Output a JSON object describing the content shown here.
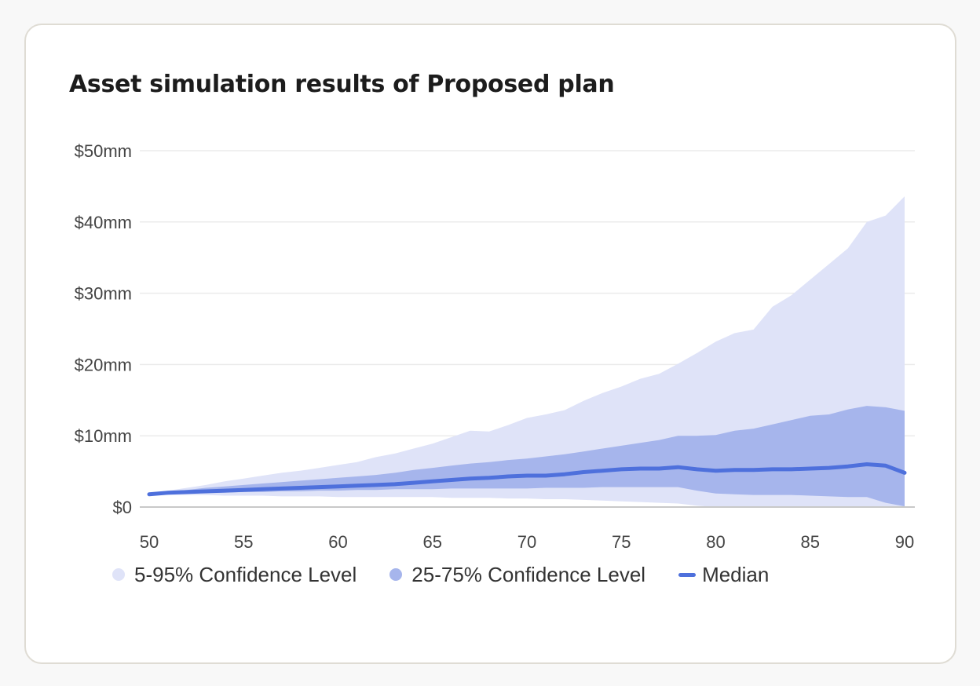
{
  "title": "Asset simulation results of Proposed plan",
  "colors": {
    "band_outer": "#dfe3f8",
    "band_inner": "#a6b5ec",
    "median": "#4e70dc",
    "grid": "#ebebeb",
    "axis": "#c9c9c9"
  },
  "chart_data": {
    "type": "area",
    "title": "Asset simulation results of Proposed plan",
    "xlabel": "",
    "ylabel": "",
    "xlim": [
      50,
      90
    ],
    "ylim": [
      0,
      50
    ],
    "x_ticks": [
      50,
      55,
      60,
      65,
      70,
      75,
      80,
      85,
      90
    ],
    "x_tick_labels": [
      "50",
      "55",
      "60",
      "65",
      "70",
      "75",
      "80",
      "85",
      "90"
    ],
    "y_ticks": [
      0,
      10,
      20,
      30,
      40,
      50
    ],
    "y_tick_labels": [
      "$0",
      "$10mm",
      "$20mm",
      "$30mm",
      "$40mm",
      "$50mm"
    ],
    "grid": true,
    "legend_position": "bottom",
    "unit": "$mm",
    "x": [
      50,
      51,
      52,
      53,
      54,
      55,
      56,
      57,
      58,
      59,
      60,
      61,
      62,
      63,
      64,
      65,
      66,
      67,
      68,
      69,
      70,
      71,
      72,
      73,
      74,
      75,
      76,
      77,
      78,
      79,
      80,
      81,
      82,
      83,
      84,
      85,
      86,
      87,
      88,
      89,
      90
    ],
    "series": [
      {
        "name": "5-95% Confidence Level",
        "kind": "band",
        "low": [
          1.8,
          1.7,
          1.7,
          1.7,
          1.6,
          1.6,
          1.6,
          1.5,
          1.5,
          1.5,
          1.4,
          1.4,
          1.4,
          1.4,
          1.4,
          1.4,
          1.3,
          1.3,
          1.3,
          1.2,
          1.2,
          1.1,
          1.1,
          1.0,
          0.9,
          0.8,
          0.7,
          0.6,
          0.5,
          0.2,
          0.0,
          0.0,
          0.0,
          0.0,
          0.0,
          0.0,
          0.0,
          0.0,
          0.0,
          0.0,
          0.0
        ],
        "high": [
          1.8,
          2.3,
          2.7,
          3.1,
          3.6,
          4.0,
          4.4,
          4.8,
          5.1,
          5.5,
          5.9,
          6.3,
          7.0,
          7.5,
          8.2,
          8.9,
          9.8,
          10.7,
          10.6,
          11.5,
          12.5,
          13.0,
          13.6,
          14.9,
          16.0,
          16.9,
          18.0,
          18.7,
          20.1,
          21.6,
          23.2,
          24.4,
          24.9,
          28.1,
          29.7,
          31.9,
          34.1,
          36.3,
          40.0,
          40.9,
          43.6
        ]
      },
      {
        "name": "25-75% Confidence Level",
        "kind": "band",
        "low": [
          1.8,
          1.8,
          1.9,
          2.0,
          2.0,
          2.1,
          2.1,
          2.2,
          2.2,
          2.3,
          2.3,
          2.4,
          2.4,
          2.5,
          2.5,
          2.5,
          2.6,
          2.6,
          2.6,
          2.6,
          2.6,
          2.7,
          2.7,
          2.7,
          2.8,
          2.8,
          2.8,
          2.8,
          2.8,
          2.3,
          1.9,
          1.8,
          1.7,
          1.7,
          1.7,
          1.6,
          1.5,
          1.4,
          1.4,
          0.6,
          0.1
        ],
        "high": [
          1.8,
          2.2,
          2.4,
          2.7,
          2.9,
          3.1,
          3.3,
          3.5,
          3.7,
          3.9,
          4.1,
          4.3,
          4.5,
          4.8,
          5.2,
          5.5,
          5.8,
          6.1,
          6.3,
          6.6,
          6.8,
          7.1,
          7.4,
          7.8,
          8.2,
          8.6,
          9.0,
          9.4,
          10.0,
          10.0,
          10.1,
          10.7,
          11.0,
          11.6,
          12.2,
          12.8,
          13.0,
          13.7,
          14.2,
          14.0,
          13.5
        ]
      },
      {
        "name": "Median",
        "kind": "line",
        "values": [
          1.8,
          2.0,
          2.1,
          2.2,
          2.3,
          2.4,
          2.5,
          2.6,
          2.7,
          2.8,
          2.9,
          3.0,
          3.1,
          3.2,
          3.4,
          3.6,
          3.8,
          4.0,
          4.1,
          4.3,
          4.4,
          4.4,
          4.6,
          4.9,
          5.1,
          5.3,
          5.4,
          5.4,
          5.6,
          5.3,
          5.1,
          5.2,
          5.2,
          5.3,
          5.3,
          5.4,
          5.5,
          5.7,
          6.0,
          5.8,
          4.8
        ]
      }
    ]
  },
  "legend": [
    {
      "label": "5-95% Confidence Level",
      "swatch": "dot",
      "color": "#dfe3f8"
    },
    {
      "label": "25-75% Confidence Level",
      "swatch": "dot",
      "color": "#a6b5ec"
    },
    {
      "label": "Median",
      "swatch": "line",
      "color": "#4e70dc"
    }
  ]
}
